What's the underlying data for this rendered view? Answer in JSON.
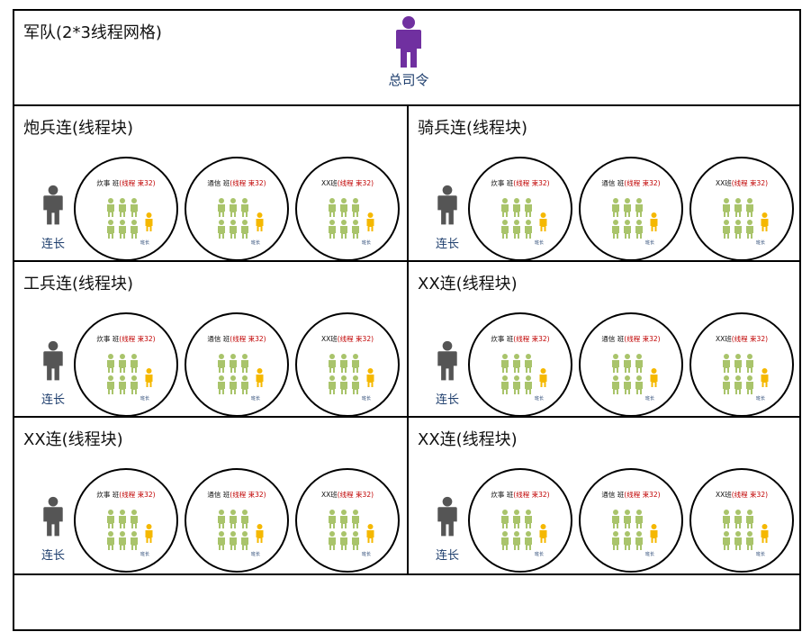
{
  "army": {
    "title": "军队(2*3线程网格)",
    "commander_label": "总司令",
    "commander_color": "#7030a0"
  },
  "colors": {
    "leader": "#555555",
    "soldier": "#a9c46b",
    "captain": "#f5b800",
    "thread_text": "#c00000",
    "label_text": "#1f3f6e"
  },
  "icons": {
    "person": "person-icon"
  },
  "companies": [
    {
      "title": "炮兵连(线程块)",
      "leader_label": "连长",
      "squads": [
        {
          "name": "炊事 班",
          "thread": "(线程 束32)",
          "captain_label": "班长"
        },
        {
          "name": "通信 班",
          "thread": "(线程 束32)",
          "captain_label": "班长"
        },
        {
          "name": "XX班",
          "thread": "(线程 束32)",
          "captain_label": "班长"
        }
      ]
    },
    {
      "title": "骑兵连(线程块)",
      "leader_label": "连长",
      "squads": [
        {
          "name": "炊事 班",
          "thread": "(线程 束32)",
          "captain_label": "班长"
        },
        {
          "name": "通信 班",
          "thread": "(线程 束32)",
          "captain_label": "班长"
        },
        {
          "name": "XX班",
          "thread": "(线程 束32)",
          "captain_label": "班长"
        }
      ]
    },
    {
      "title": "工兵连(线程块)",
      "leader_label": "连长",
      "squads": [
        {
          "name": "炊事 班",
          "thread": "(线程 束32)",
          "captain_label": "班长"
        },
        {
          "name": "通信 班",
          "thread": "(线程 束32)",
          "captain_label": "班长"
        },
        {
          "name": "XX班",
          "thread": "(线程 束32)",
          "captain_label": "班长"
        }
      ]
    },
    {
      "title": "XX连(线程块)",
      "leader_label": "连长",
      "squads": [
        {
          "name": "炊事 班",
          "thread": "(线程 束32)",
          "captain_label": "班长"
        },
        {
          "name": "通信 班",
          "thread": "(线程 束32)",
          "captain_label": "班长"
        },
        {
          "name": "XX班",
          "thread": "(线程 束32)",
          "captain_label": "班长"
        }
      ]
    },
    {
      "title": "XX连(线程块)",
      "leader_label": "连长",
      "squads": [
        {
          "name": "炊事 班",
          "thread": "(线程 束32)",
          "captain_label": "班长"
        },
        {
          "name": "通信 班",
          "thread": "(线程 束32)",
          "captain_label": "班长"
        },
        {
          "name": "XX班",
          "thread": "(线程 束32)",
          "captain_label": "班长"
        }
      ]
    },
    {
      "title": "XX连(线程块)",
      "leader_label": "连长",
      "squads": [
        {
          "name": "炊事 班",
          "thread": "(线程 束32)",
          "captain_label": "班长"
        },
        {
          "name": "通信 班",
          "thread": "(线程 束32)",
          "captain_label": "班长"
        },
        {
          "name": "XX班",
          "thread": "(线程 束32)",
          "captain_label": "班长"
        }
      ]
    }
  ]
}
